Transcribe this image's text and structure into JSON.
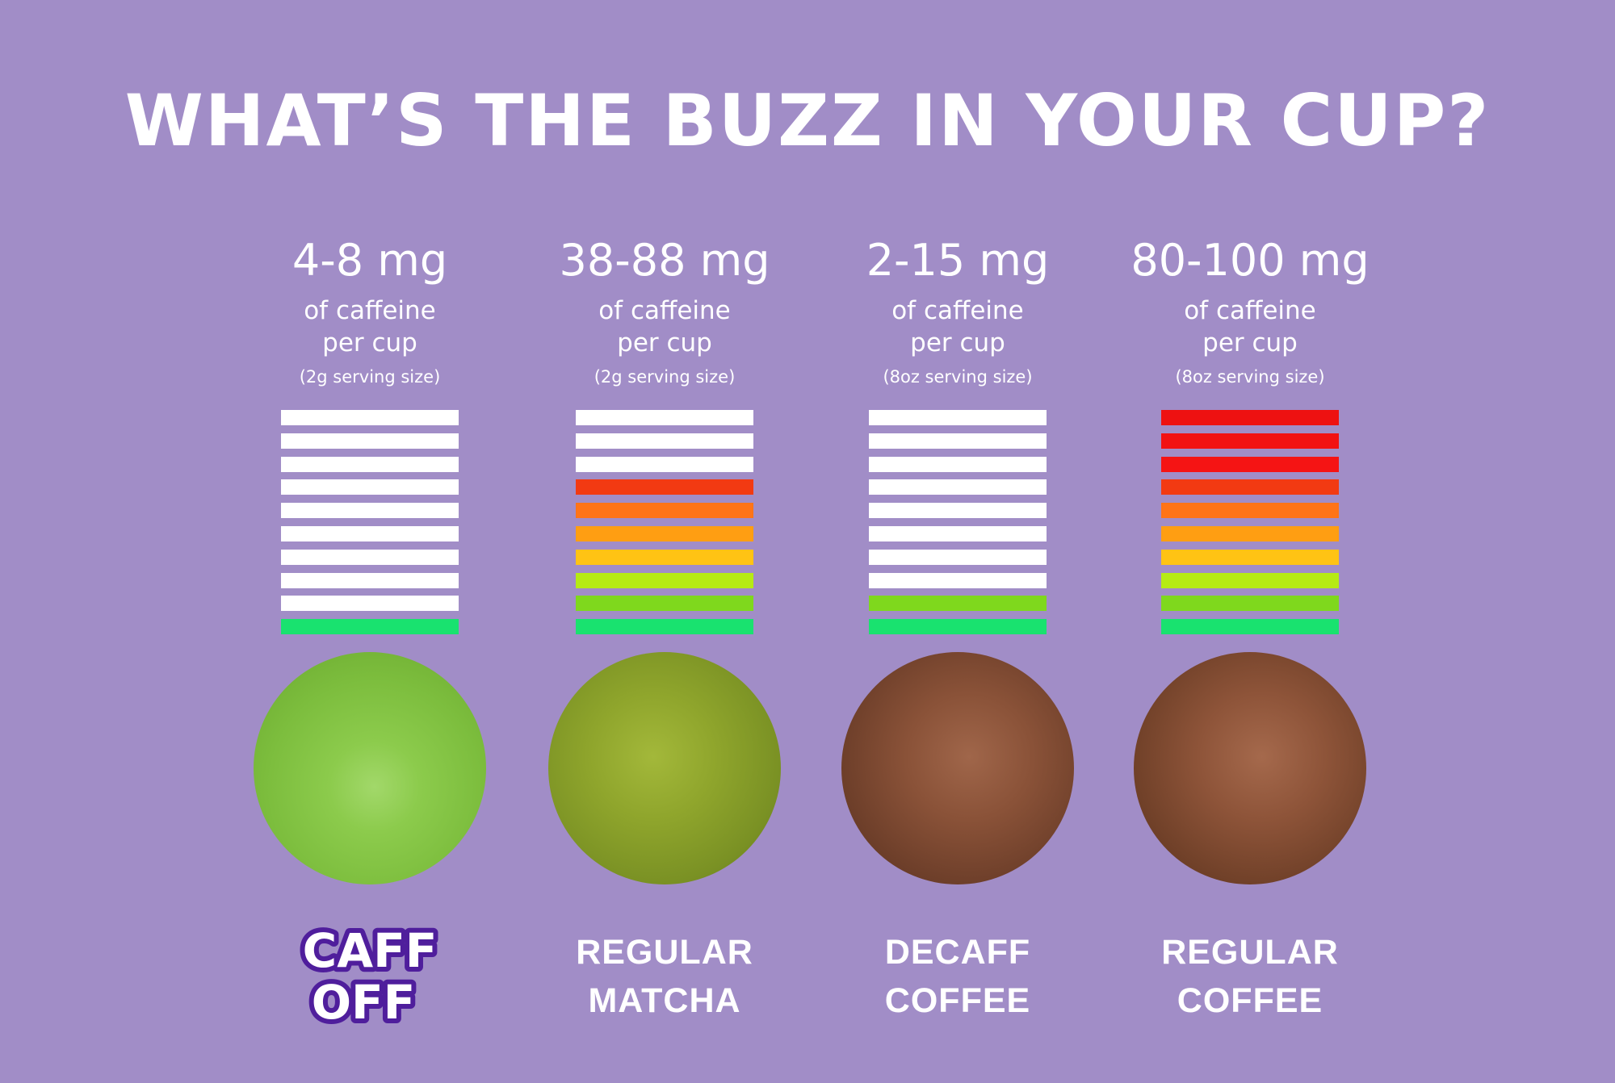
{
  "title": "WHAT’S THE BUZZ IN YOUR CUP?",
  "colors": {
    "background": "#a18dc7",
    "empty_bar": "#ffffff",
    "level_colors": [
      "#19e26f",
      "#7fd81d",
      "#b6eb14",
      "#ffc314",
      "#ff9e12",
      "#ff7417",
      "#f23a12",
      "#f51414",
      "#f21212",
      "#ee1111"
    ]
  },
  "columns": [
    {
      "amount": "4-8 mg",
      "line1": "of caffeine",
      "line2": "per cup",
      "serving": "(2g serving size)",
      "filled_bars": 1,
      "total_bars": 10,
      "label_lines": [
        "CAFF",
        "OFF"
      ],
      "powder": "light-green-powder",
      "is_logo": true
    },
    {
      "amount": "38-88 mg",
      "line1": "of caffeine",
      "line2": "per cup",
      "serving": "(2g serving size)",
      "filled_bars": 7,
      "total_bars": 10,
      "label_lines": [
        "REGULAR",
        "MATCHA"
      ],
      "powder": "matcha-powder",
      "is_logo": false
    },
    {
      "amount": "2-15 mg",
      "line1": "of caffeine",
      "line2": "per cup",
      "serving": "(8oz serving size)",
      "filled_bars": 2,
      "total_bars": 10,
      "label_lines": [
        "DECAFF",
        "COFFEE"
      ],
      "powder": "coffee-grounds",
      "is_logo": false
    },
    {
      "amount": "80-100 mg",
      "line1": "of caffeine",
      "line2": "per cup",
      "serving": "(8oz serving size)",
      "filled_bars": 10,
      "total_bars": 10,
      "label_lines": [
        "REGULAR",
        "COFFEE"
      ],
      "powder": "coffee-grounds",
      "is_logo": false
    }
  ]
}
